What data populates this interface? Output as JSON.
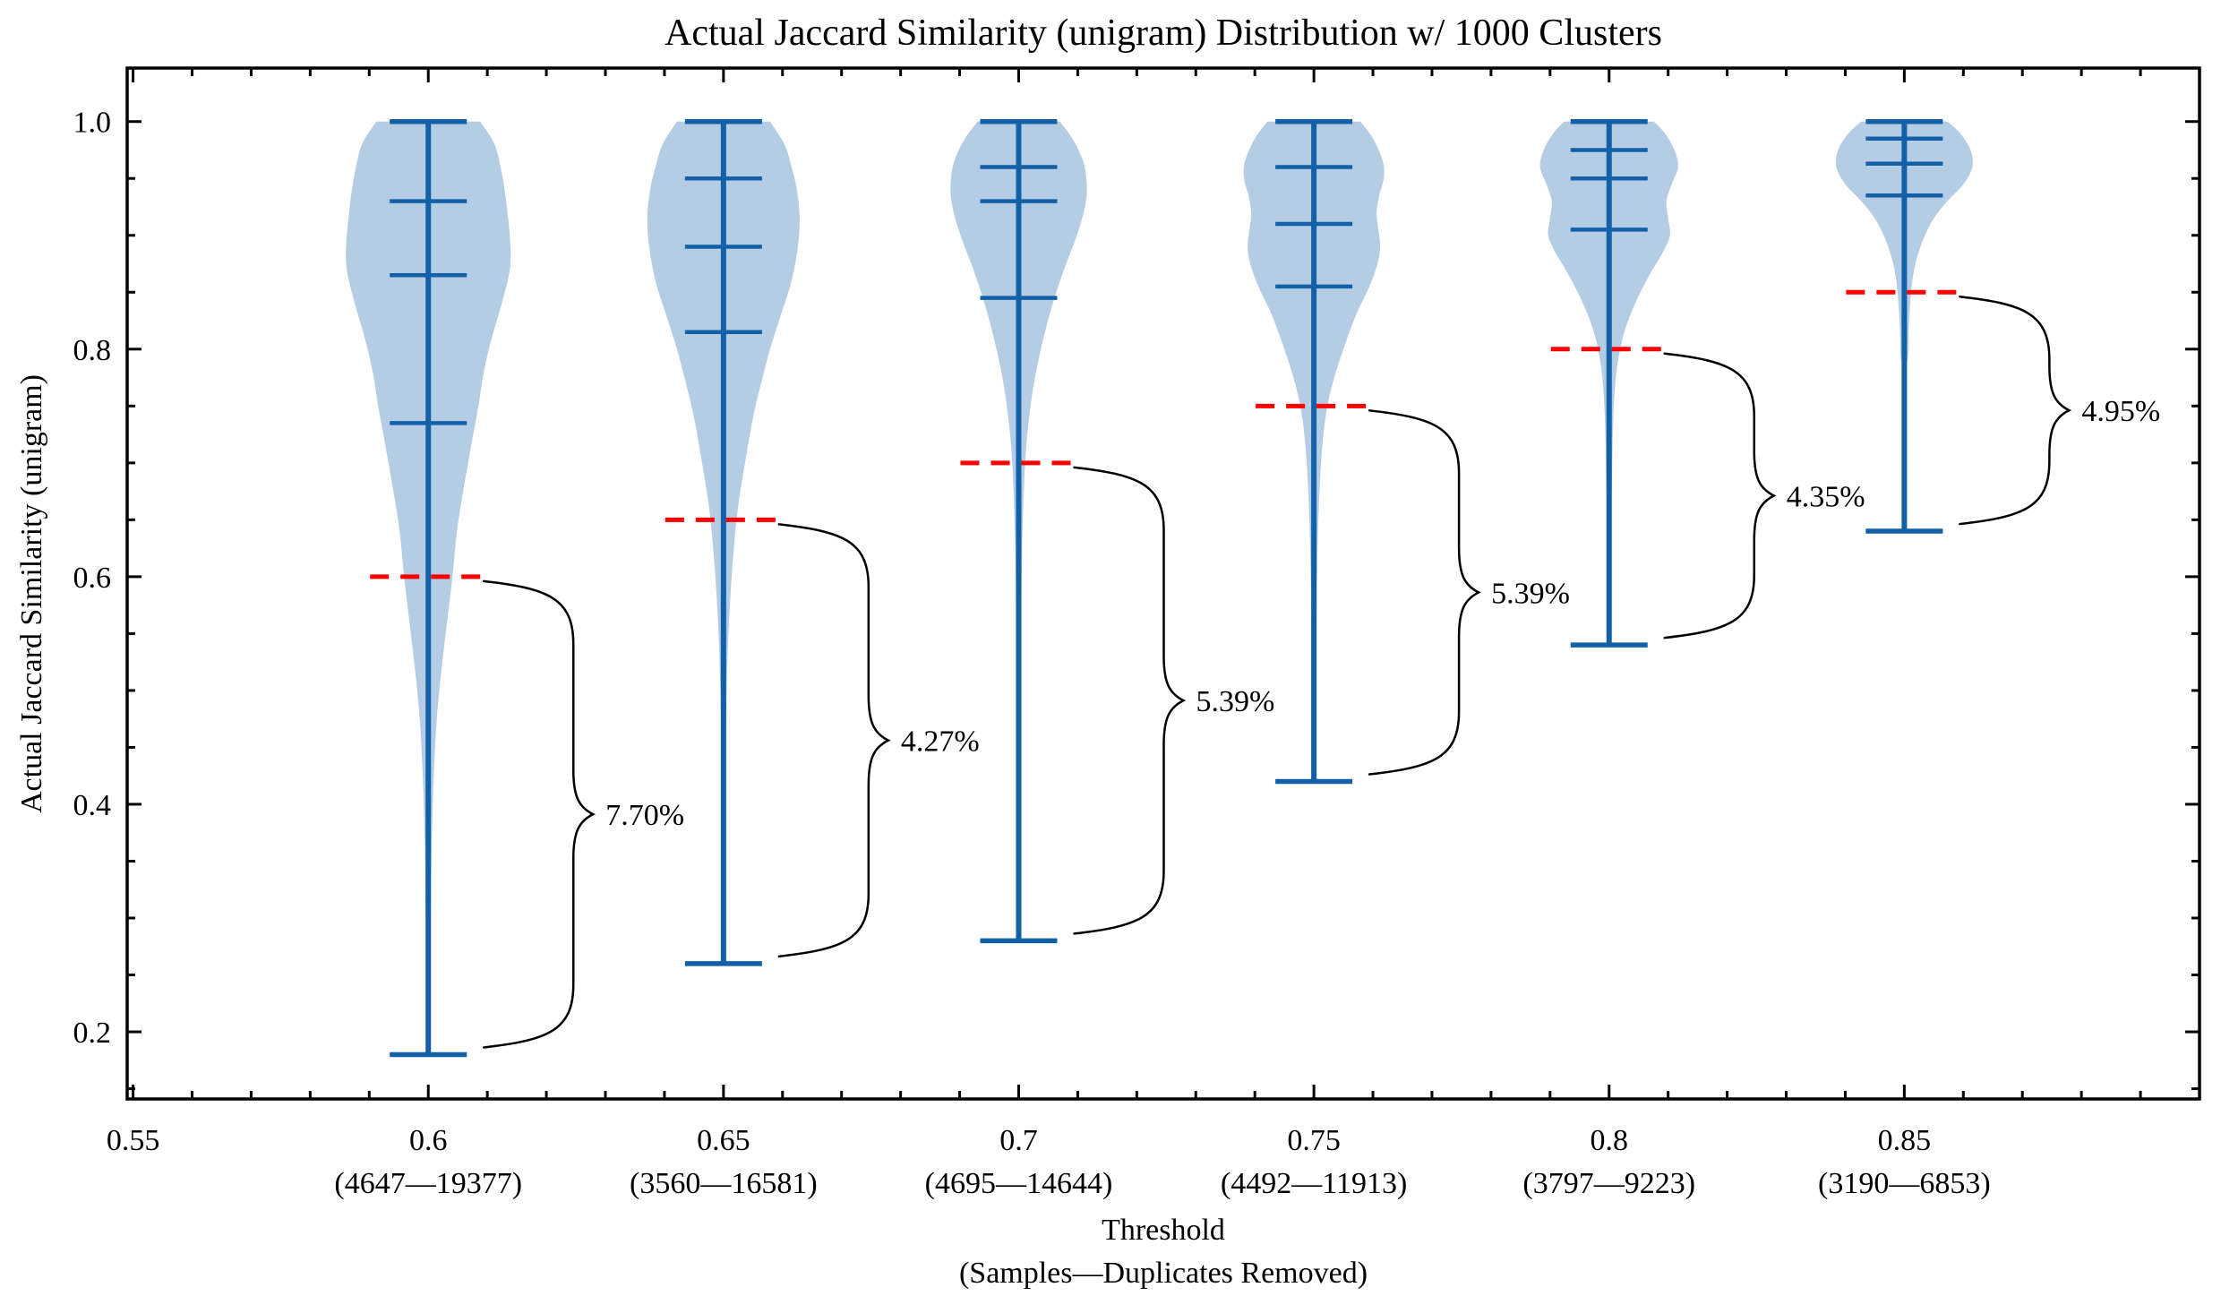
{
  "chart_data": {
    "type": "violin",
    "title": "Actual Jaccard Similarity (unigram) Distribution w/ 1000 Clusters",
    "ylabel": "Actual Jaccard Similarity (unigram)",
    "xlabel_line1": "Threshold",
    "xlabel_line2": "(Samples—Duplicates Removed)",
    "xlim": [
      0.549,
      0.9
    ],
    "ylim": [
      0.141,
      1.047
    ],
    "grid": false,
    "y_major_ticks": [
      0.2,
      0.4,
      0.6,
      0.8,
      1.0
    ],
    "y_major_tick_labels": [
      "0.2",
      "0.4",
      "0.6",
      "0.8",
      "1.0"
    ],
    "y_minor_step": 0.05,
    "x_minor_step": 0.01,
    "x_first_tick_label": "0.55",
    "x_first_tick_value": 0.55,
    "colors": {
      "violin_fill": "#b4cde4",
      "violin_line": "#1160a8",
      "threshold_line": "#ff0000",
      "annotation": "#000000",
      "axis": "#000000"
    },
    "violins": [
      {
        "x": 0.6,
        "tick_label": "0.6",
        "sub_label": "(4647—19377)",
        "samples": 4647,
        "duplicates_removed": 19377,
        "min": 0.18,
        "q1": 0.735,
        "median": 0.865,
        "q3": 0.93,
        "max": 1.0,
        "threshold_value": 0.6,
        "pct_label": "7.70%",
        "profile": [
          [
            1.0,
            58
          ],
          [
            0.98,
            74
          ],
          [
            0.955,
            82
          ],
          [
            0.93,
            87
          ],
          [
            0.9,
            91
          ],
          [
            0.88,
            92
          ],
          [
            0.865,
            90
          ],
          [
            0.84,
            82
          ],
          [
            0.81,
            71
          ],
          [
            0.78,
            62
          ],
          [
            0.75,
            56
          ],
          [
            0.72,
            49
          ],
          [
            0.68,
            40
          ],
          [
            0.64,
            32
          ],
          [
            0.6,
            27
          ],
          [
            0.56,
            21
          ],
          [
            0.52,
            15
          ],
          [
            0.48,
            10
          ],
          [
            0.44,
            7
          ],
          [
            0.4,
            5
          ],
          [
            0.35,
            3.5
          ],
          [
            0.3,
            2.5
          ]
        ]
      },
      {
        "x": 0.65,
        "tick_label": "0.65",
        "sub_label": "(3560—16581)",
        "samples": 3560,
        "duplicates_removed": 16581,
        "min": 0.26,
        "q1": 0.815,
        "median": 0.89,
        "q3": 0.95,
        "max": 1.0,
        "threshold_value": 0.65,
        "pct_label": "4.27%",
        "profile": [
          [
            1.0,
            52
          ],
          [
            0.98,
            68
          ],
          [
            0.96,
            76
          ],
          [
            0.94,
            82
          ],
          [
            0.915,
            85
          ],
          [
            0.89,
            83
          ],
          [
            0.86,
            76
          ],
          [
            0.83,
            64
          ],
          [
            0.8,
            52
          ],
          [
            0.77,
            42
          ],
          [
            0.74,
            33
          ],
          [
            0.7,
            24
          ],
          [
            0.66,
            16
          ],
          [
            0.62,
            11
          ],
          [
            0.58,
            7.5
          ],
          [
            0.54,
            5
          ],
          [
            0.5,
            3.5
          ],
          [
            0.45,
            2.5
          ],
          [
            0.41,
            2
          ]
        ]
      },
      {
        "x": 0.7,
        "tick_label": "0.7",
        "sub_label": "(4695—14644)",
        "samples": 4695,
        "duplicates_removed": 14644,
        "min": 0.28,
        "q1": 0.845,
        "median": 0.93,
        "q3": 0.96,
        "max": 1.0,
        "threshold_value": 0.7,
        "pct_label": "5.39%",
        "profile": [
          [
            1.0,
            46
          ],
          [
            0.985,
            60
          ],
          [
            0.965,
            72
          ],
          [
            0.945,
            76
          ],
          [
            0.925,
            74
          ],
          [
            0.9,
            65
          ],
          [
            0.875,
            53
          ],
          [
            0.85,
            42
          ],
          [
            0.82,
            31
          ],
          [
            0.79,
            22
          ],
          [
            0.76,
            15
          ],
          [
            0.72,
            9
          ],
          [
            0.68,
            6
          ],
          [
            0.63,
            4
          ],
          [
            0.58,
            3
          ],
          [
            0.52,
            2.5
          ],
          [
            0.47,
            2
          ]
        ]
      },
      {
        "x": 0.75,
        "tick_label": "0.75",
        "sub_label": "(4492—11913)",
        "samples": 4492,
        "duplicates_removed": 11913,
        "min": 0.42,
        "q1": 0.855,
        "median": 0.91,
        "q3": 0.96,
        "max": 1.0,
        "threshold_value": 0.75,
        "pct_label": "5.39%",
        "profile": [
          [
            1.0,
            52
          ],
          [
            0.985,
            66
          ],
          [
            0.965,
            77
          ],
          [
            0.95,
            78
          ],
          [
            0.935,
            73
          ],
          [
            0.92,
            70
          ],
          [
            0.905,
            72
          ],
          [
            0.89,
            74
          ],
          [
            0.875,
            71
          ],
          [
            0.855,
            62
          ],
          [
            0.83,
            47
          ],
          [
            0.8,
            33
          ],
          [
            0.77,
            21
          ],
          [
            0.74,
            13
          ],
          [
            0.7,
            8
          ],
          [
            0.65,
            5
          ],
          [
            0.6,
            3.5
          ],
          [
            0.56,
            2.5
          ]
        ]
      },
      {
        "x": 0.8,
        "tick_label": "0.8",
        "sub_label": "(3797—9223)",
        "samples": 3797,
        "duplicates_removed": 9223,
        "min": 0.54,
        "q1": 0.905,
        "median": 0.95,
        "q3": 0.975,
        "max": 1.0,
        "threshold_value": 0.8,
        "pct_label": "4.35%",
        "profile": [
          [
            1.0,
            50
          ],
          [
            0.99,
            62
          ],
          [
            0.975,
            73
          ],
          [
            0.96,
            77
          ],
          [
            0.945,
            70
          ],
          [
            0.93,
            64
          ],
          [
            0.915,
            66
          ],
          [
            0.9,
            68
          ],
          [
            0.885,
            60
          ],
          [
            0.865,
            45
          ],
          [
            0.84,
            29
          ],
          [
            0.815,
            17
          ],
          [
            0.79,
            10
          ],
          [
            0.76,
            6
          ],
          [
            0.72,
            4
          ],
          [
            0.67,
            2.5
          ]
        ]
      },
      {
        "x": 0.85,
        "tick_label": "0.85",
        "sub_label": "(3190—6853)",
        "samples": 3190,
        "duplicates_removed": 6853,
        "min": 0.64,
        "q1": 0.935,
        "median": 0.963,
        "q3": 0.985,
        "max": 1.0,
        "threshold_value": 0.85,
        "pct_label": "4.95%",
        "profile": [
          [
            1.0,
            48
          ],
          [
            0.99,
            62
          ],
          [
            0.975,
            74
          ],
          [
            0.96,
            76
          ],
          [
            0.945,
            66
          ],
          [
            0.93,
            48
          ],
          [
            0.915,
            33
          ],
          [
            0.9,
            23
          ],
          [
            0.885,
            16
          ],
          [
            0.87,
            11
          ],
          [
            0.85,
            7.5
          ],
          [
            0.82,
            5
          ],
          [
            0.79,
            3.5
          ]
        ]
      }
    ]
  }
}
